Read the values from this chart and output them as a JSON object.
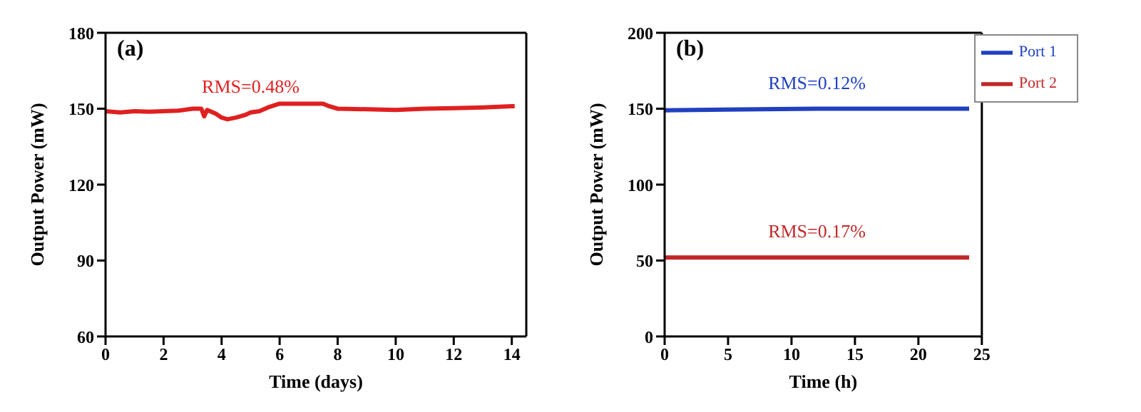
{
  "chart_data": [
    {
      "type": "line",
      "title": "(a)",
      "xlabel": "Time (days)",
      "ylabel": "Output Power (mW)",
      "xlim": [
        0,
        14.5
      ],
      "xticks": [
        0,
        2,
        4,
        6,
        8,
        10,
        12,
        14
      ],
      "ylim": [
        60,
        180
      ],
      "yticks": [
        60,
        90,
        120,
        150,
        180
      ],
      "grid": false,
      "legend": false,
      "marker": "none",
      "line_style": "solid",
      "annotations": [
        "RMS=0.48%"
      ],
      "series": [
        {
          "color": "#e02020",
          "x": [
            0,
            0.5,
            1,
            1.5,
            2,
            2.5,
            3,
            3.3,
            3.4,
            3.5,
            3.8,
            4,
            4.2,
            4.5,
            4.8,
            5,
            5.3,
            5.6,
            6,
            6.5,
            7,
            7.5,
            7.7,
            8,
            9,
            10,
            11,
            12,
            13,
            14,
            14.1
          ],
          "values": [
            149,
            148.5,
            149,
            148.8,
            149,
            149.2,
            150,
            150,
            147,
            149.5,
            148,
            146.5,
            145.8,
            146.5,
            147.5,
            148.5,
            149,
            150.5,
            152,
            152,
            152,
            152,
            151,
            150,
            149.8,
            149.5,
            150,
            150.2,
            150.5,
            151,
            151
          ]
        }
      ]
    },
    {
      "type": "line",
      "title": "(b)",
      "xlabel": "Time (h)",
      "ylabel": "Output Power (mW)",
      "xlim": [
        0,
        25
      ],
      "xticks": [
        0,
        5,
        10,
        15,
        20,
        25
      ],
      "ylim": [
        0,
        200
      ],
      "yticks": [
        0,
        50,
        100,
        150,
        200
      ],
      "grid": false,
      "legend": "top right",
      "marker": "none",
      "line_style": "solid",
      "annotations": [
        "RMS=0.12%",
        "RMS=0.17%"
      ],
      "series": [
        {
          "name": "Port 1",
          "color": "#2040c0",
          "x": [
            0,
            12,
            24
          ],
          "values": [
            149,
            150,
            150
          ]
        },
        {
          "name": "Port 2",
          "color": "#c02828",
          "x": [
            0,
            12,
            24
          ],
          "values": [
            52,
            52,
            52
          ]
        }
      ]
    }
  ]
}
